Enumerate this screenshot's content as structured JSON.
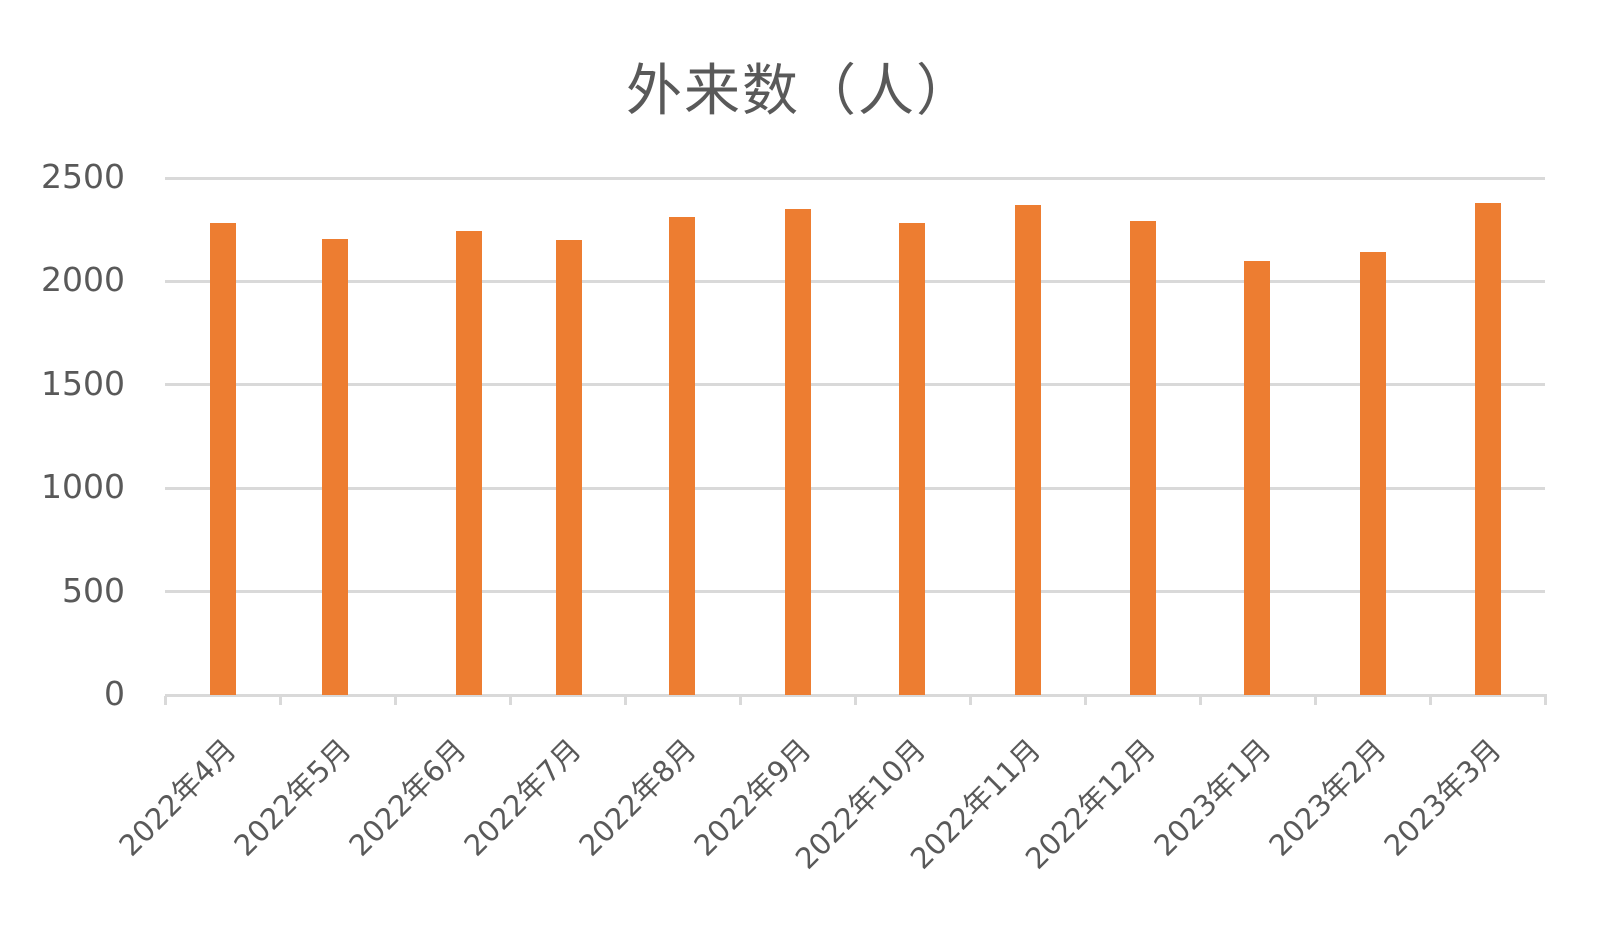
{
  "chart_data": {
    "type": "bar",
    "title": "外来数（人）",
    "xlabel": "",
    "ylabel": "",
    "ylim": [
      0,
      2500
    ],
    "yticks": [
      "0",
      "500",
      "1000",
      "1500",
      "2000",
      "2500"
    ],
    "grid": true,
    "legend": null,
    "bar_color": "#ED7D31",
    "categories": [
      "2022年4月",
      "2022年5月",
      "2022年6月",
      "2022年7月",
      "2022年8月",
      "2022年9月",
      "2022年10月",
      "2022年11月",
      "2022年12月",
      "2023年1月",
      "2023年2月",
      "2023年3月"
    ],
    "series": [
      {
        "name": "外来数（人）",
        "values": [
          2280,
          2205,
          2245,
          2200,
          2310,
          2350,
          2280,
          2370,
          2290,
          2100,
          2140,
          2380
        ]
      }
    ]
  },
  "colors": {
    "bar": "#ED7D31",
    "grid": "#D9D9D9",
    "text": "#595959"
  }
}
